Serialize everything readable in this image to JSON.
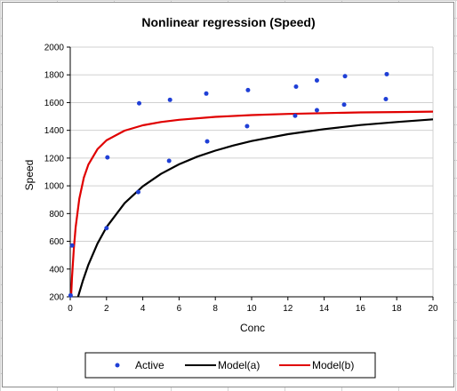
{
  "chart_data": {
    "type": "scatter",
    "title": "Nonlinear regression (Speed)",
    "xlabel": "Conc",
    "ylabel": "Speed",
    "xlim": [
      0,
      20
    ],
    "ylim": [
      200,
      2000
    ],
    "xticks": [
      0,
      2,
      4,
      6,
      8,
      10,
      12,
      14,
      16,
      18,
      20
    ],
    "yticks": [
      200,
      400,
      600,
      800,
      1000,
      1200,
      1400,
      1600,
      1800,
      2000
    ],
    "grid": "horizontal",
    "legend_position": "bottom",
    "colors": {
      "active": "#1f3fd6",
      "model_a": "#000000",
      "model_b": "#e00000"
    },
    "series": [
      {
        "name": "Active",
        "kind": "points",
        "x": [
          0.02,
          0.1,
          2.0,
          2.05,
          3.75,
          3.8,
          5.45,
          5.5,
          7.55,
          7.5,
          9.75,
          9.8,
          12.4,
          12.45,
          13.6,
          13.6,
          15.1,
          15.15,
          17.4,
          17.45
        ],
        "y": [
          210,
          570,
          695,
          1205,
          955,
          1595,
          1180,
          1620,
          1320,
          1665,
          1430,
          1690,
          1505,
          1715,
          1545,
          1760,
          1585,
          1790,
          1625,
          1805
        ]
      },
      {
        "name": "Model(a)",
        "kind": "line",
        "x": [
          0.4,
          0.7,
          1.0,
          1.5,
          2.0,
          3.0,
          4.0,
          5.0,
          6.0,
          7.0,
          8.0,
          9.0,
          10.0,
          12.0,
          14.0,
          16.0,
          18.0,
          20.0
        ],
        "y": [
          187,
          318,
          431,
          583,
          702,
          875,
          996,
          1086,
          1155,
          1210,
          1254,
          1291,
          1323,
          1372,
          1409,
          1438,
          1460,
          1479
        ]
      },
      {
        "name": "Model(b)",
        "kind": "line",
        "x": [
          0.05,
          0.1,
          0.2,
          0.3,
          0.5,
          0.75,
          1.0,
          1.5,
          2.0,
          3.0,
          4.0,
          5.0,
          6.0,
          8.0,
          10.0,
          12.0,
          14.0,
          16.0,
          18.0,
          20.0
        ],
        "y": [
          205,
          342,
          552,
          703,
          907,
          1059,
          1153,
          1264,
          1328,
          1398,
          1436,
          1460,
          1476,
          1497,
          1510,
          1518,
          1524,
          1529,
          1532,
          1535
        ]
      }
    ]
  }
}
